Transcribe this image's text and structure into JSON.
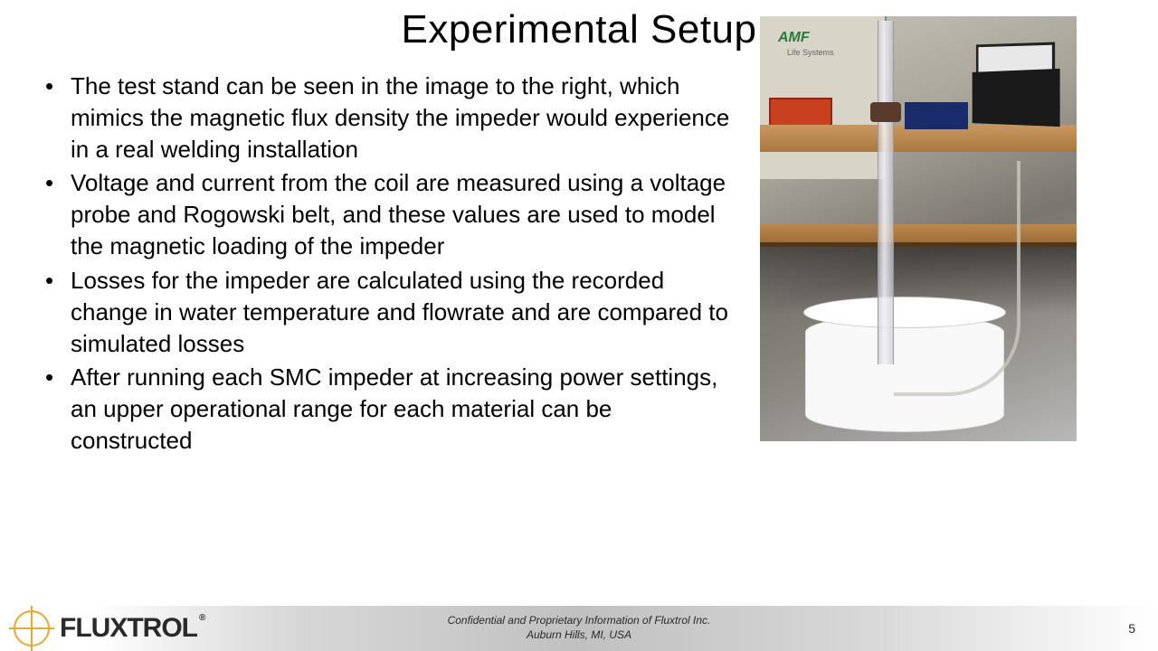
{
  "title": "Experimental Setup",
  "bullets": [
    "The test stand can be seen in the image to the right, which mimics the magnetic flux density the impeder would experience in a real welding installation",
    "Voltage and current from the coil are measured using a voltage probe and Rogowski belt, and these values are used to model the magnetic loading of the impeder",
    "Losses for the impeder are calculated using the recorded change in water temperature and flowrate and are compared to simulated losses",
    "After running each SMC impeder at increasing power settings, an upper operational range for each material can be constructed"
  ],
  "image": {
    "description": "Laboratory test stand photograph showing a vertical clear tube apparatus mounted to equipment cabinet with AMF Life Systems logo, workbench with laptop and measurement devices, tube extending into white bucket on concrete floor, flexible hose connection",
    "badge_logo": "AMF",
    "badge_sub": "Life Systems"
  },
  "footer": {
    "company": "FLUXTROL",
    "registered": "®",
    "line1": "Confidential and Proprietary Information of Fluxtrol Inc.",
    "line2": "Auburn Hills, MI, USA",
    "page": "5"
  },
  "colors": {
    "text": "#000000",
    "footer_gradient_mid": "#c0c0c0",
    "logo_accent": "#e8a838",
    "logo_text": "#2a2a2a"
  },
  "typography": {
    "title_fontsize": 44,
    "bullet_fontsize": 26,
    "footer_text_fontsize": 12,
    "logo_fontsize": 30
  }
}
